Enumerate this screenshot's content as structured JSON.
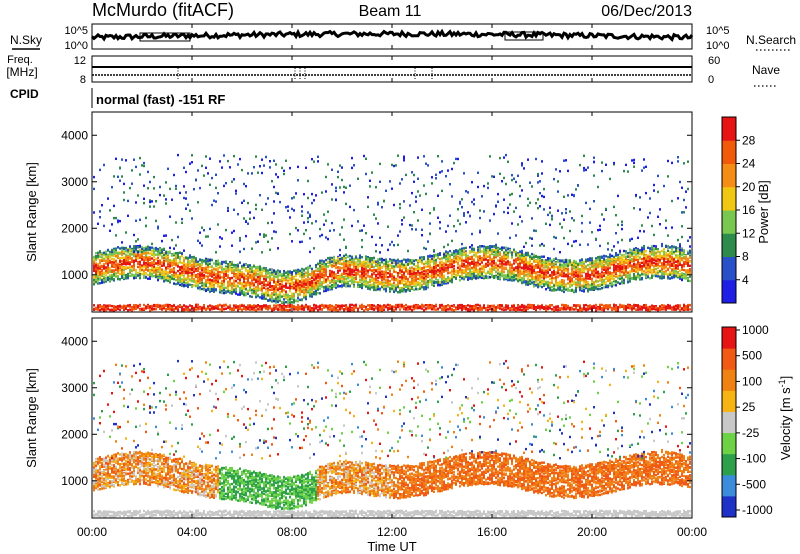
{
  "header": {
    "station": "McMurdo (fitACF)",
    "beam": "Beam 11",
    "date": "06/Dec/2013"
  },
  "noise_panel": {
    "left_label": "N.Sky",
    "right_label": "N.Search",
    "left_ticks": [
      "10^5",
      "10^0"
    ],
    "right_ticks": [
      "10^5",
      "10^0"
    ]
  },
  "freq_panel": {
    "left_label_1": "Freq.",
    "left_label_2": "[MHz]",
    "left_ticks": [
      "12",
      "8"
    ],
    "right_label": "Nave",
    "right_ticks": [
      "60",
      "0"
    ]
  },
  "cpid": {
    "label": "CPID",
    "value": "normal (fast) -151 RF"
  },
  "time_axis": {
    "label": "Time UT",
    "ticks": [
      "00:00",
      "04:00",
      "08:00",
      "12:00",
      "16:00",
      "20:00",
      "00:00"
    ]
  },
  "chart_data": [
    {
      "type": "heatmap",
      "title": "Power",
      "ylabel": "Slant Range [km]",
      "xlabel": "",
      "ylim": [
        200,
        4500
      ],
      "yticks": [
        "1000",
        "2000",
        "3000",
        "4000"
      ],
      "colorbar": {
        "label": "Power [dB]",
        "ticks": [
          "4",
          "8",
          "12",
          "16",
          "20",
          "24",
          "28"
        ],
        "colors": [
          "#1e1ee6",
          "#2850c8",
          "#2d8c4b",
          "#78c850",
          "#f0c814",
          "#f58c14",
          "#f05a0a",
          "#e61414"
        ],
        "range": [
          0,
          32
        ]
      },
      "features": [
        {
          "name": "echo band",
          "x_hours": [
            0,
            24
          ],
          "range_km": [
            900,
            1400
          ]
        },
        {
          "name": "ground scatter",
          "x_hours": [
            0,
            24
          ],
          "range_km": [
            200,
            400
          ]
        }
      ]
    },
    {
      "type": "heatmap",
      "title": "Velocity",
      "ylabel": "Slant Range [km]",
      "xlabel": "Time UT",
      "ylim": [
        200,
        4500
      ],
      "yticks": [
        "1000",
        "2000",
        "3000",
        "4000"
      ],
      "colorbar": {
        "label": "Velocity [m s^-1]",
        "ticks": [
          "1000",
          "500",
          "100",
          "25",
          "-25",
          "-100",
          "-500",
          "-1000"
        ],
        "colors": [
          "#1e32c8",
          "#3c8cdc",
          "#2da04b",
          "#6ed246",
          "#c8c8c8",
          "#f5b414",
          "#f08214",
          "#f05a14",
          "#e61414"
        ],
        "range": [
          -1000,
          1000
        ]
      }
    }
  ]
}
